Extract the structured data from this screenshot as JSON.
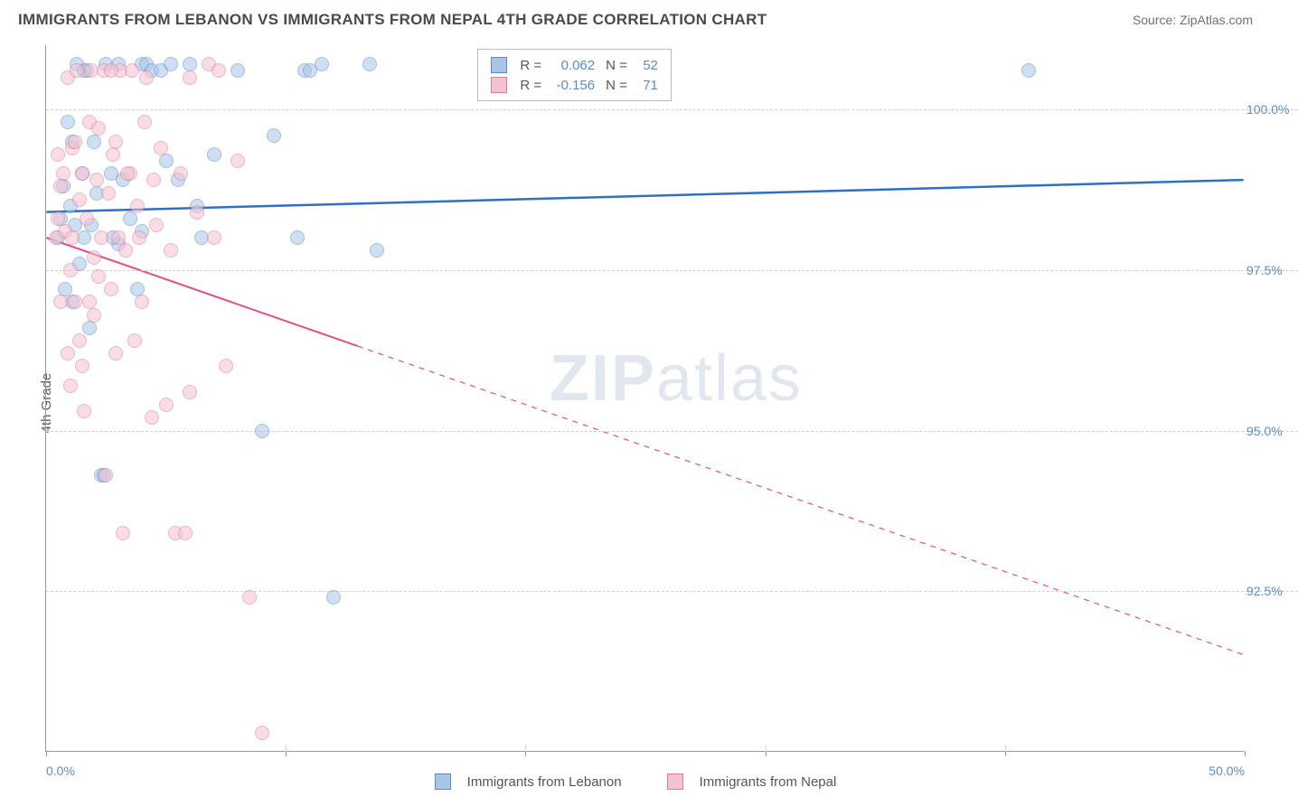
{
  "title": "IMMIGRANTS FROM LEBANON VS IMMIGRANTS FROM NEPAL 4TH GRADE CORRELATION CHART",
  "source_label": "Source:",
  "source_value": "ZipAtlas.com",
  "ylabel": "4th Grade",
  "watermark_a": "ZIP",
  "watermark_b": "atlas",
  "chart": {
    "type": "scatter",
    "xlim": [
      0.0,
      50.0
    ],
    "ylim": [
      90.0,
      101.0
    ],
    "xtick_labels": {
      "min": "0.0%",
      "max": "50.0%"
    },
    "xtick_marks": [
      0,
      10,
      20,
      30,
      40,
      50
    ],
    "yticks": [
      92.5,
      95.0,
      97.5,
      100.0
    ],
    "ytick_labels": [
      "92.5%",
      "95.0%",
      "97.5%",
      "100.0%"
    ],
    "grid_color": "#d0d0d0",
    "background_color": "#ffffff",
    "series": [
      {
        "name": "Immigrants from Lebanon",
        "color_fill": "#a8c5e8",
        "color_stroke": "#5b8bc9",
        "R": "0.062",
        "N": "52",
        "trend": {
          "x1": 0,
          "y1": 98.4,
          "x2": 50,
          "y2": 98.9,
          "color": "#2f6fc4",
          "width": 2.5,
          "solid_until_x": 50
        },
        "points": [
          [
            0.5,
            98.0
          ],
          [
            0.6,
            98.3
          ],
          [
            0.8,
            97.2
          ],
          [
            0.9,
            99.8
          ],
          [
            1.0,
            98.5
          ],
          [
            1.1,
            99.5
          ],
          [
            1.2,
            98.2
          ],
          [
            1.3,
            100.7
          ],
          [
            1.4,
            97.6
          ],
          [
            1.5,
            99.0
          ],
          [
            1.6,
            98.0
          ],
          [
            1.7,
            100.6
          ],
          [
            1.8,
            96.6
          ],
          [
            1.9,
            98.2
          ],
          [
            2.0,
            99.5
          ],
          [
            2.1,
            98.7
          ],
          [
            2.3,
            94.3
          ],
          [
            2.5,
            100.7
          ],
          [
            2.7,
            99.0
          ],
          [
            3.0,
            97.9
          ],
          [
            3.0,
            100.7
          ],
          [
            3.5,
            98.3
          ],
          [
            3.8,
            97.2
          ],
          [
            4.0,
            100.7
          ],
          [
            4.0,
            98.1
          ],
          [
            4.2,
            100.7
          ],
          [
            4.4,
            100.6
          ],
          [
            4.8,
            100.6
          ],
          [
            5.0,
            99.2
          ],
          [
            5.2,
            100.7
          ],
          [
            5.5,
            98.9
          ],
          [
            6.0,
            100.7
          ],
          [
            6.3,
            98.5
          ],
          [
            7.0,
            99.3
          ],
          [
            8.0,
            100.6
          ],
          [
            9.0,
            95.0
          ],
          [
            9.5,
            99.6
          ],
          [
            10.5,
            98.0
          ],
          [
            10.8,
            100.6
          ],
          [
            11.0,
            100.6
          ],
          [
            11.5,
            100.7
          ],
          [
            13.5,
            100.7
          ],
          [
            13.8,
            97.8
          ],
          [
            41.0,
            100.6
          ],
          [
            2.4,
            94.3
          ],
          [
            3.2,
            98.9
          ],
          [
            1.1,
            97.0
          ],
          [
            0.7,
            98.8
          ],
          [
            2.8,
            98.0
          ],
          [
            1.6,
            100.6
          ],
          [
            6.5,
            98.0
          ],
          [
            12.0,
            92.4
          ]
        ]
      },
      {
        "name": "Immigrants from Nepal",
        "color_fill": "#f5c2d0",
        "color_stroke": "#e07a9a",
        "R": "-0.156",
        "N": "71",
        "trend": {
          "x1": 0,
          "y1": 98.0,
          "x2": 50,
          "y2": 91.5,
          "color": "#e34d7d",
          "width": 2,
          "solid_until_x": 13
        },
        "points": [
          [
            0.4,
            98.0
          ],
          [
            0.5,
            98.3
          ],
          [
            0.6,
            97.0
          ],
          [
            0.7,
            99.0
          ],
          [
            0.8,
            98.1
          ],
          [
            0.9,
            100.5
          ],
          [
            1.0,
            97.5
          ],
          [
            1.1,
            99.4
          ],
          [
            1.2,
            97.0
          ],
          [
            1.3,
            100.6
          ],
          [
            1.4,
            96.4
          ],
          [
            1.5,
            99.0
          ],
          [
            1.6,
            95.3
          ],
          [
            1.7,
            98.3
          ],
          [
            1.8,
            99.8
          ],
          [
            1.9,
            100.6
          ],
          [
            2.0,
            97.7
          ],
          [
            2.1,
            98.9
          ],
          [
            2.2,
            99.7
          ],
          [
            2.3,
            98.0
          ],
          [
            2.4,
            100.6
          ],
          [
            2.5,
            94.3
          ],
          [
            2.6,
            98.7
          ],
          [
            2.7,
            97.2
          ],
          [
            2.8,
            99.3
          ],
          [
            2.9,
            96.2
          ],
          [
            3.0,
            98.0
          ],
          [
            3.1,
            100.6
          ],
          [
            3.2,
            93.4
          ],
          [
            3.3,
            97.8
          ],
          [
            3.5,
            99.0
          ],
          [
            3.7,
            96.4
          ],
          [
            3.8,
            98.5
          ],
          [
            4.0,
            97.0
          ],
          [
            4.2,
            100.5
          ],
          [
            4.4,
            95.2
          ],
          [
            4.6,
            98.2
          ],
          [
            4.8,
            99.4
          ],
          [
            5.0,
            95.4
          ],
          [
            5.2,
            97.8
          ],
          [
            5.4,
            93.4
          ],
          [
            5.6,
            99.0
          ],
          [
            6.0,
            95.6
          ],
          [
            6.0,
            100.5
          ],
          [
            6.3,
            98.4
          ],
          [
            6.8,
            100.7
          ],
          [
            7.0,
            98.0
          ],
          [
            7.2,
            100.6
          ],
          [
            7.5,
            96.0
          ],
          [
            8.0,
            99.2
          ],
          [
            8.5,
            92.4
          ],
          [
            9.0,
            90.3
          ],
          [
            1.0,
            95.7
          ],
          [
            1.4,
            98.6
          ],
          [
            0.5,
            99.3
          ],
          [
            1.8,
            97.0
          ],
          [
            2.0,
            96.8
          ],
          [
            0.9,
            96.2
          ],
          [
            1.2,
            99.5
          ],
          [
            3.6,
            100.6
          ],
          [
            4.1,
            99.8
          ],
          [
            2.9,
            99.5
          ],
          [
            1.5,
            96.0
          ],
          [
            2.7,
            100.6
          ],
          [
            3.4,
            99.0
          ],
          [
            0.6,
            98.8
          ],
          [
            1.1,
            98.0
          ],
          [
            2.2,
            97.4
          ],
          [
            3.9,
            98.0
          ],
          [
            5.8,
            93.4
          ],
          [
            4.5,
            98.9
          ]
        ]
      }
    ]
  },
  "legend_stats": {
    "r_label": "R =",
    "n_label": "N ="
  },
  "bottom_legend": [
    {
      "label": "Immigrants from Lebanon",
      "fill": "#a8c5e8",
      "stroke": "#5b8bc9"
    },
    {
      "label": "Immigrants from Nepal",
      "fill": "#f5c2d0",
      "stroke": "#e07a9a"
    }
  ]
}
